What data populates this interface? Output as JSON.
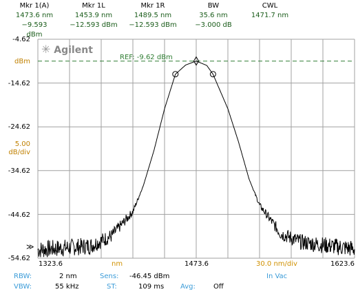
{
  "markers": [
    {
      "label": "Mkr 1(A)",
      "v1": "1473.6 nm",
      "v2": "−9.593 dBm"
    },
    {
      "label": "Mkr 1L",
      "v1": "1453.9 nm",
      "v2": "−12.593 dBm"
    },
    {
      "label": "Mkr 1R",
      "v1": "1489.5 nm",
      "v2": "−12.593 dBm"
    },
    {
      "label": "BW",
      "v1": "35.6 nm",
      "v2": "−3.000 dB"
    },
    {
      "label": "CWL",
      "v1": "1471.7 nm",
      "v2": ""
    }
  ],
  "brand": "Agilent",
  "brand_icon": "starburst-logo-icon",
  "yaxis": {
    "ticks": [
      "-4.62",
      "-14.62",
      "-24.62",
      "-34.62",
      "-44.62",
      "-54.62"
    ],
    "unit": "dBm",
    "scale_line1": "5.00",
    "scale_line2": "dB/div"
  },
  "reference": "REF: -9.62 dBm",
  "xaxis": {
    "start": "1323.6",
    "unit": "nm",
    "center": "1473.6",
    "span": "30.0 nm/div",
    "stop": "1623.6"
  },
  "status": {
    "rbw_label": "RBW:",
    "rbw_value": "2 nm",
    "sens_label": "Sens:",
    "sens_value": "-46.45 dBm",
    "vbw_label": "VBW:",
    "vbw_value": "55 kHz",
    "st_label": "ST:",
    "st_value": "109 ms",
    "avg_label": "Avg:",
    "avg_value": "Off",
    "medium": "In Vac"
  },
  "colors": {
    "grid": "#a0a0a0",
    "ref_line": "#2e7d32",
    "trace": "#000000",
    "label_orange": "#d09000",
    "label_blue": "#3a9bd8"
  },
  "chart_data": {
    "type": "line",
    "x_range": [
      1323.6,
      1623.6
    ],
    "y_range": [
      -54.62,
      -4.62
    ],
    "reference_level": -9.62,
    "series": [
      {
        "x": [
          1323.6,
          1373.6,
          1393.6,
          1413.6,
          1423.6,
          1433.6,
          1443.6,
          1453.9,
          1463.6,
          1473.6,
          1483.6,
          1489.5,
          1503.6,
          1513.6,
          1523.6,
          1533.6,
          1553.6,
          1573.6,
          1623.6
        ],
        "y": [
          -52.7,
          -51.8,
          -49.5,
          -44.0,
          -38.0,
          -30.0,
          -20.5,
          -12.6,
          -10.5,
          -9.6,
          -10.6,
          -12.6,
          -20.5,
          -28.0,
          -36.5,
          -42.5,
          -49.0,
          -51.0,
          -52.5
        ]
      }
    ],
    "markers": [
      {
        "x": 1453.9,
        "y": -12.593
      },
      {
        "x": 1473.6,
        "y": -9.593
      },
      {
        "x": 1489.5,
        "y": -12.593
      }
    ]
  }
}
